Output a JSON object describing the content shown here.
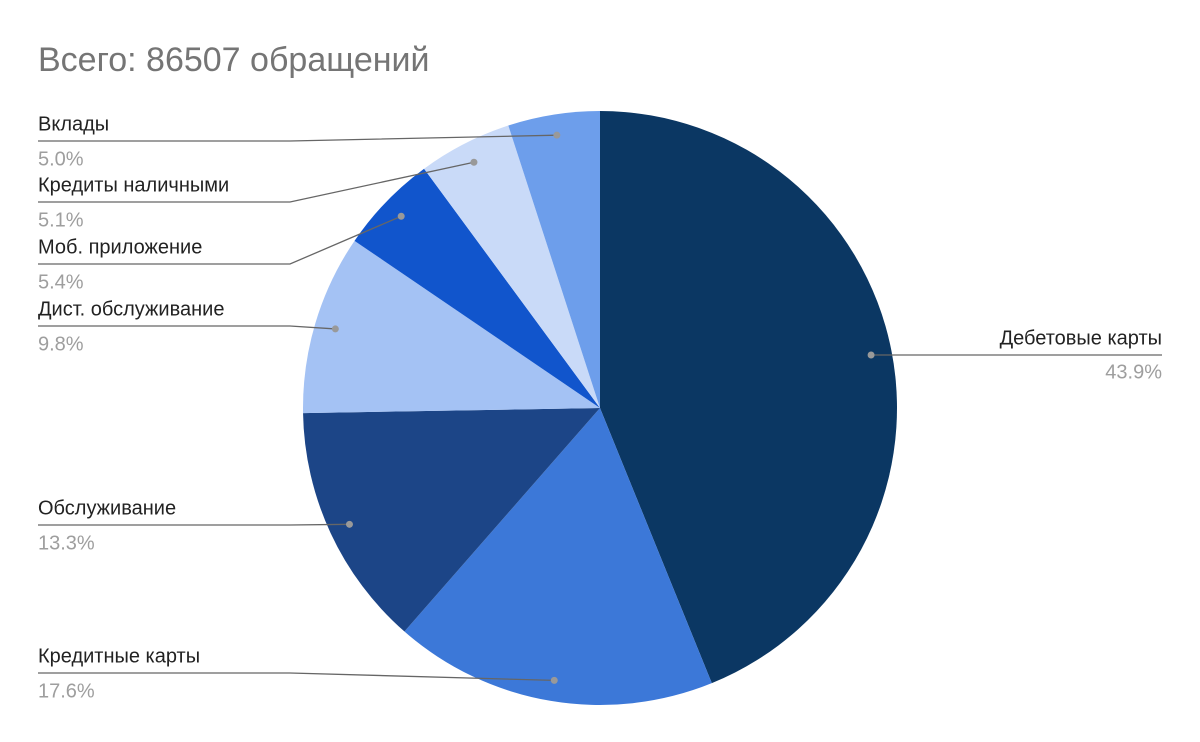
{
  "chart_data": {
    "type": "pie",
    "title": "Всего: 86507 обращений",
    "categories": [
      "Дебетовые карты",
      "Кредитные карты",
      "Обслуживание",
      "Дист. обслуживание",
      "Моб. приложение",
      "Кредиты наличными",
      "Вклады"
    ],
    "values": [
      43.9,
      17.6,
      13.3,
      9.8,
      5.4,
      5.1,
      5.0
    ],
    "value_labels": [
      "43.9%",
      "17.6%",
      "13.3%",
      "9.8%",
      "5.4%",
      "5.1%",
      "5.0%"
    ],
    "colors": [
      "#0b3763",
      "#3c78d8",
      "#1c4587",
      "#a4c2f4",
      "#1155cc",
      "#c9daf8",
      "#6d9eeb"
    ]
  }
}
